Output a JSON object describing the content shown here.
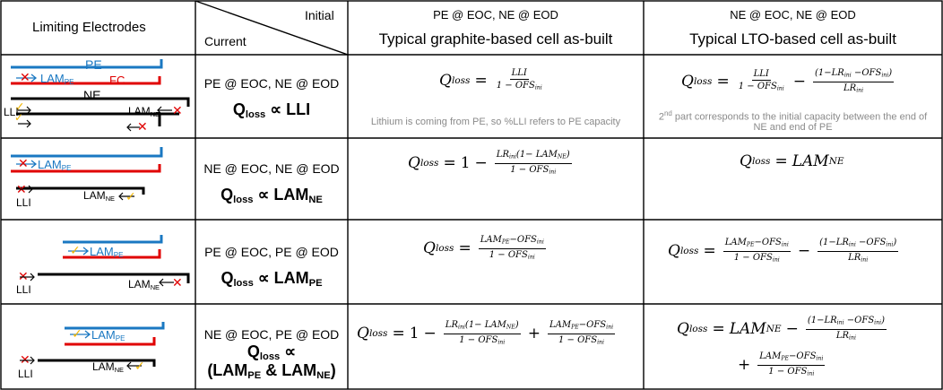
{
  "header": {
    "col1": "Limiting Electrodes",
    "col2_top": "Initial",
    "col2_bottom": "Current",
    "col3_top": "PE @ EOC, NE @ EOD",
    "col3_bottom": "Typical graphite-based cell as-built",
    "col4_top": "NE @ EOC, NE @ EOD",
    "col4_bottom": "Typical LTO-based cell as-built"
  },
  "rows": [
    {
      "condition": "PE @ EOC, NE @ EOD",
      "q": "Q",
      "q_sub": "loss",
      "prop": "∝ LLI",
      "diagram": {
        "pe": "PE",
        "fc": "FC",
        "ne": "NE",
        "lam_pe": "LAM",
        "lam_pe_sub": "PE",
        "lli": "LLI",
        "lam_ne": "LAM",
        "lam_ne_sub": "NE"
      },
      "graphite_note": "Lithium is coming from PE, so %LLI refers to PE capacity",
      "lto_note_1_sup": "nd",
      "lto_note_1": "2",
      "lto_note_1_rest": " part corresponds to the initial capacity between the end of",
      "lto_note_2": "NE and end of PE"
    },
    {
      "condition": "NE @ EOC, NE @ EOD",
      "q": "Q",
      "q_sub": "loss",
      "prop": "∝ LAM",
      "prop_sub": "NE",
      "diagram": {
        "lam_pe": "LAM",
        "lam_pe_sub": "PE",
        "lli": "LLI",
        "lam_ne": "LAM",
        "lam_ne_sub": "NE"
      }
    },
    {
      "condition": "PE @ EOC, PE @ EOD",
      "q": "Q",
      "q_sub": "loss",
      "prop": "∝ LAM",
      "prop_sub": "PE",
      "diagram": {
        "lam_pe": "LAM",
        "lam_pe_sub": "PE",
        "lli": "LLI",
        "lam_ne": "LAM",
        "lam_ne_sub": "NE"
      }
    },
    {
      "condition": "NE @ EOC, PE @ EOD",
      "q": "Q",
      "q_sub": "loss",
      "prop": "∝",
      "prop2": "(LAM",
      "prop2_sub1": "PE",
      "prop2_mid": " & LAM",
      "prop2_sub2": "NE",
      "prop2_end": ")",
      "diagram": {
        "lam_pe": "LAM",
        "lam_pe_sub": "PE",
        "lli": "LLI",
        "lam_ne": "LAM",
        "lam_ne_sub": "NE"
      }
    }
  ],
  "math": {
    "Q": "Q",
    "loss": "loss",
    "eq": "=",
    "one": "1",
    "minus": "−",
    "plus": "+",
    "LLI": "LLI",
    "one_minus_OFS": "1 − OFS",
    "ini": "ini",
    "LAM": "LAM",
    "NE": "NE",
    "PE": "PE",
    "LR": "LR",
    "OFS": "OFS",
    "lto_r1_num2": "(1−LR",
    "lto_r1_num2b": " −OFS",
    "lto_r1_num2c": ")",
    "g_r2_num_a": "LR",
    "g_r2_num_b": "(1− LAM",
    "g_r2_num_c": ")",
    "lam_pe_minus_ofs": "LAM",
    "dash_ofs": "−OFS"
  },
  "colors": {
    "pe": "#1a78c2",
    "fc": "#e00000",
    "ne": "#000000",
    "cross": "#e00000",
    "check": "#f2b705",
    "grid": "#000000",
    "note": "#8a8a8a"
  }
}
